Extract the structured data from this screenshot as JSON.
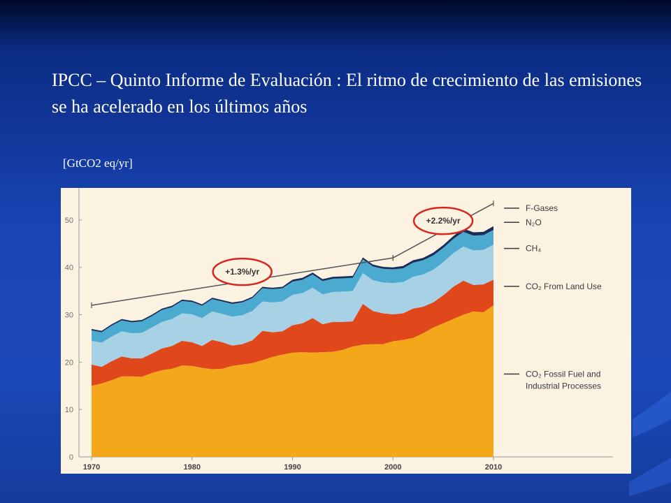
{
  "slide": {
    "title": "IPCC – Quinto Informe de Evaluación : El ritmo de crecimiento de las emisiones se ha acelerado en los últimos años",
    "unit_label": "[GtCO2 eq/yr]"
  },
  "colors": {
    "background": "#1a44b4",
    "co2_fossil": "#f5a71c",
    "co2_land_use": "#e0481c",
    "ch4": "#a7d1e5",
    "n2o": "#4aaacf",
    "f_gases": "#1b2e5a",
    "trend_line": "#555555",
    "rate_circle": "#d9261c"
  },
  "chart_data": {
    "type": "area",
    "stacked": true,
    "x": [
      1970,
      1971,
      1972,
      1973,
      1974,
      1975,
      1976,
      1977,
      1978,
      1979,
      1980,
      1981,
      1982,
      1983,
      1984,
      1985,
      1986,
      1987,
      1988,
      1989,
      1990,
      1991,
      1992,
      1993,
      1994,
      1995,
      1996,
      1997,
      1998,
      1999,
      2000,
      2001,
      2002,
      2003,
      2004,
      2005,
      2006,
      2007,
      2008,
      2009,
      2010
    ],
    "x_ticks": [
      1970,
      1980,
      1990,
      2000,
      2010
    ],
    "y_ticks": [
      0,
      10,
      20,
      30,
      40,
      50
    ],
    "ylim": [
      0,
      55
    ],
    "xlabel": "",
    "ylabel": "",
    "series": [
      {
        "name": "CO₂ Fossil Fuel and Industrial Processes",
        "values": [
          15.0,
          15.5,
          16.2,
          17.0,
          17.0,
          16.9,
          17.7,
          18.3,
          18.6,
          19.3,
          19.2,
          18.8,
          18.5,
          18.6,
          19.2,
          19.5,
          19.8,
          20.4,
          21.1,
          21.6,
          22.0,
          22.1,
          22.0,
          22.1,
          22.2,
          22.6,
          23.3,
          23.7,
          23.8,
          23.8,
          24.4,
          24.7,
          25.1,
          26.1,
          27.3,
          28.2,
          29.1,
          30.0,
          30.7,
          30.5,
          32.0
        ]
      },
      {
        "name": "CO₂ From Land Use",
        "values": [
          4.5,
          3.5,
          4.0,
          4.2,
          3.8,
          3.9,
          4.1,
          4.6,
          4.8,
          5.2,
          5.0,
          4.6,
          6.2,
          5.6,
          4.3,
          4.3,
          4.8,
          6.2,
          5.2,
          4.9,
          5.8,
          6.1,
          7.3,
          5.9,
          6.3,
          5.9,
          5.3,
          8.6,
          7.0,
          6.5,
          5.7,
          5.6,
          6.2,
          5.6,
          5.3,
          5.9,
          6.8,
          7.2,
          5.6,
          5.9,
          5.4
        ]
      },
      {
        "name": "CH₄",
        "values": [
          5.0,
          5.1,
          5.2,
          5.3,
          5.3,
          5.4,
          5.5,
          5.6,
          5.7,
          5.8,
          5.9,
          5.9,
          6.0,
          6.0,
          6.1,
          6.1,
          6.2,
          6.2,
          6.3,
          6.3,
          6.4,
          6.4,
          6.4,
          6.3,
          6.3,
          6.4,
          6.4,
          6.5,
          6.5,
          6.5,
          6.6,
          6.6,
          6.7,
          6.8,
          6.9,
          7.0,
          7.1,
          7.2,
          7.3,
          7.3,
          7.4
        ]
      },
      {
        "name": "N₂O",
        "values": [
          2.2,
          2.2,
          2.3,
          2.3,
          2.3,
          2.4,
          2.4,
          2.5,
          2.5,
          2.6,
          2.6,
          2.6,
          2.6,
          2.6,
          2.7,
          2.7,
          2.7,
          2.8,
          2.8,
          2.8,
          2.8,
          2.8,
          2.8,
          2.8,
          2.8,
          2.8,
          2.8,
          2.9,
          2.9,
          2.9,
          2.9,
          2.9,
          3.0,
          3.0,
          3.0,
          3.0,
          3.0,
          3.1,
          3.1,
          3.1,
          3.1
        ]
      },
      {
        "name": "F-Gases",
        "values": [
          0.3,
          0.3,
          0.3,
          0.3,
          0.3,
          0.3,
          0.3,
          0.3,
          0.3,
          0.3,
          0.3,
          0.3,
          0.3,
          0.3,
          0.3,
          0.3,
          0.3,
          0.3,
          0.3,
          0.3,
          0.4,
          0.4,
          0.4,
          0.4,
          0.4,
          0.4,
          0.4,
          0.4,
          0.4,
          0.4,
          0.4,
          0.5,
          0.5,
          0.5,
          0.6,
          0.6,
          0.6,
          0.7,
          0.7,
          0.7,
          0.8
        ]
      }
    ],
    "legend": [
      "F-Gases",
      "N₂O",
      "CH₄",
      "CO₂ From Land Use",
      "CO₂ Fossil Fuel and Industrial Processes"
    ],
    "legend_position": "right",
    "annotations": [
      {
        "text": "+1.3%/yr",
        "x_range": [
          1970,
          2000
        ],
        "y_range": [
          32,
          42
        ]
      },
      {
        "text": "+2.2%/yr",
        "x_range": [
          2000,
          2010
        ],
        "y_range": [
          42,
          53.5
        ]
      }
    ]
  }
}
